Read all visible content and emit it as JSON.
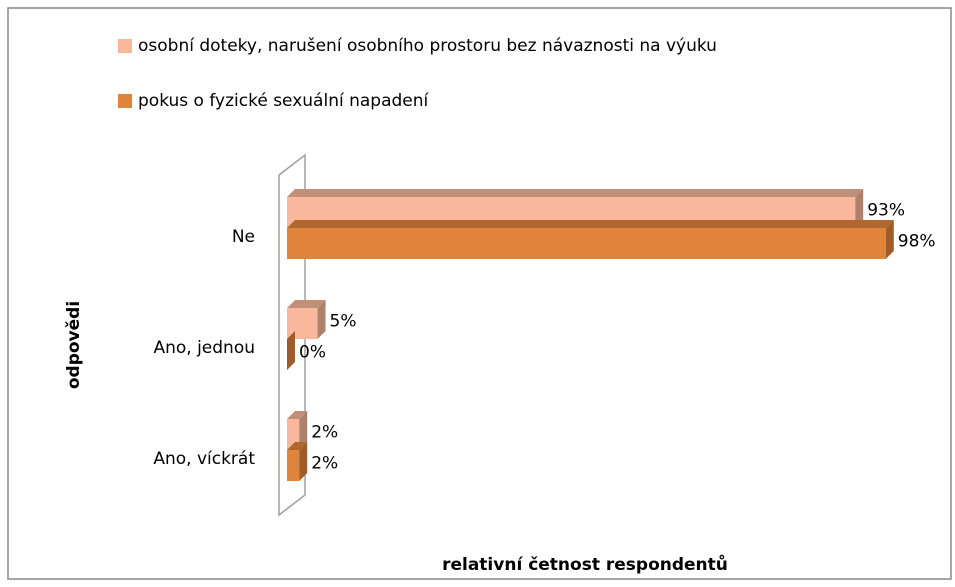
{
  "chart_data": {
    "type": "bar3d_horizontal",
    "categories": [
      "Ne",
      "Ano, jednou",
      "Ano, víckrát"
    ],
    "series": [
      {
        "name": "osobní doteky, narušení osobního prostoru bez návaznosti na výuku",
        "color": "#f9b89b",
        "values": [
          93,
          5,
          2
        ],
        "value_labels": [
          "93%",
          "5%",
          "2%"
        ]
      },
      {
        "name": "pokus o fyzické sexuální napadení",
        "color": "#e0843c",
        "values": [
          98,
          0,
          2
        ],
        "value_labels": [
          "98%",
          "0%",
          "2%"
        ]
      }
    ],
    "xlim": [
      0,
      100
    ],
    "x_label": "relativní četnost respondentů",
    "y_label": "odpovědi"
  }
}
